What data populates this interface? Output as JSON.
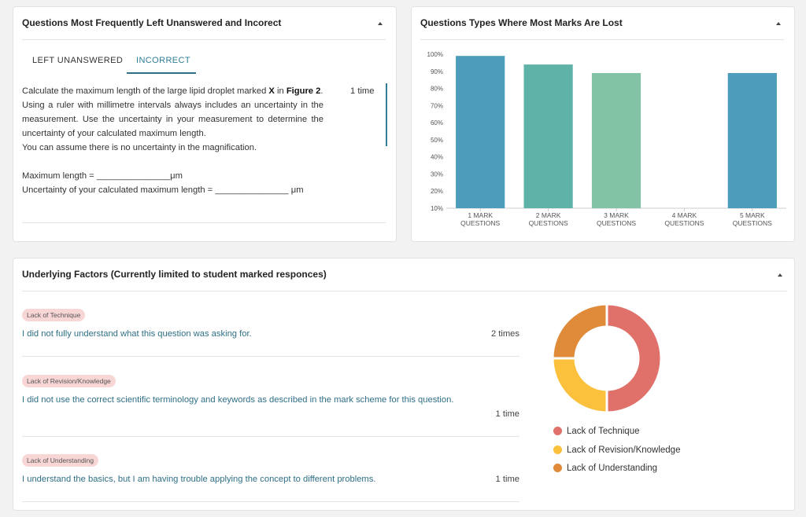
{
  "questions_panel": {
    "title": "Questions Most Frequently Left Unanswered and Incorect",
    "tabs": [
      "LEFT UNANSWERED",
      "INCORRECT"
    ],
    "question": {
      "paragraphs": [
        [
          {
            "text": "Calculate the maximum length of the large lipid droplet marked "
          },
          {
            "text": "X",
            "bold": true
          },
          {
            "text": " in "
          },
          {
            "text": "Figure 2",
            "bold": true
          },
          {
            "text": "."
          }
        ],
        [
          {
            "text": "Using a ruler with millimetre intervals always includes an uncertainty in the measurement. Use the uncertainty in your measurement to determine the uncertainty of your calculated maximum length."
          }
        ],
        [
          {
            "text": "You can assume there is no uncertainty in the magnification."
          }
        ],
        [
          {
            "text": "Maximum length = _______________μm"
          }
        ],
        [
          {
            "text": "Uncertainty of your calculated maximum length = _______________ μm"
          }
        ]
      ],
      "count": "1 time"
    }
  },
  "marks_panel": {
    "title": "Questions Types Where Most Marks Are Lost",
    "chart_data": {
      "type": "bar",
      "categories": [
        "1 MARK QUESTIONS",
        "2 MARK QUESTIONS",
        "3 MARK QUESTIONS",
        "4 MARK QUESTIONS",
        "5 MARK QUESTIONS"
      ],
      "values": [
        99,
        94,
        89,
        null,
        89
      ],
      "colors": [
        "#4b9dbb",
        "#5fb2a8",
        "#82c3a5",
        "#82c3a5",
        "#4b9dbb"
      ],
      "ylim": [
        10,
        100
      ],
      "yticks": [
        {
          "value": 10,
          "label": "10%"
        },
        {
          "value": 20,
          "label": "20%"
        },
        {
          "value": 30,
          "label": "30%"
        },
        {
          "value": 40,
          "label": "40%"
        },
        {
          "value": 50,
          "label": "50%"
        },
        {
          "value": 60,
          "label": "60%"
        },
        {
          "value": 70,
          "label": "70%"
        },
        {
          "value": 80,
          "label": "80%"
        },
        {
          "value": 90,
          "label": "90%"
        },
        {
          "value": 100,
          "label": "100%"
        }
      ],
      "grid": false
    }
  },
  "factors_panel": {
    "title": "Underlying Factors (Currently limited to student marked responces)",
    "items": [
      {
        "tag": "Lack of Technique",
        "text": "I did not fully understand what this question was asking for.",
        "count": "2 times"
      },
      {
        "tag": "Lack of Revision/Knowledge",
        "text": "I did not use the correct scientific terminology and keywords as described in the mark scheme for this question.",
        "count": "1 time"
      },
      {
        "tag": "Lack of Understanding",
        "text": "I understand the basics, but I am having trouble applying the concept to different problems.",
        "count": "1 time"
      }
    ],
    "chart_data": {
      "type": "donut",
      "categories": [
        "Lack of Technique",
        "Lack of Revision/Knowledge",
        "Lack of Understanding"
      ],
      "values": [
        2,
        1,
        1
      ],
      "colors": [
        "#e0716a",
        "#fbc03c",
        "#e08b3a"
      ]
    }
  }
}
